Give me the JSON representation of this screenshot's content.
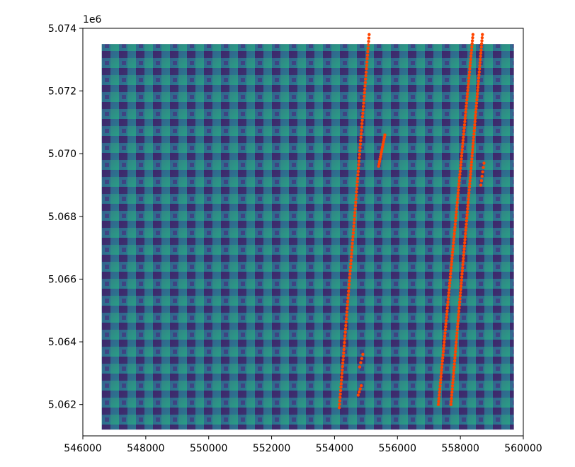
{
  "chart_data": {
    "type": "scatter",
    "title": "",
    "xlabel": "",
    "ylabel": "",
    "xlim": [
      546000,
      560000
    ],
    "ylim": [
      5061000,
      5074000
    ],
    "y_offset_label": "1e6",
    "x_ticks": [
      546000,
      548000,
      550000,
      552000,
      554000,
      556000,
      558000,
      560000
    ],
    "x_tick_labels": [
      "546000",
      "548000",
      "550000",
      "552000",
      "554000",
      "556000",
      "558000",
      "560000"
    ],
    "y_ticks": [
      5062000,
      5064000,
      5066000,
      5068000,
      5070000,
      5072000,
      5074000
    ],
    "y_tick_labels": [
      "5.062",
      "5.064",
      "5.066",
      "5.068",
      "5.070",
      "5.072",
      "5.074"
    ],
    "background_raster": {
      "colormap": "viridis",
      "extent": {
        "xmin": 546600,
        "xmax": 559700,
        "ymin": 5061200,
        "ymax": 5073500
      }
    },
    "series": [
      {
        "color": "#ff4500",
        "tracks": [
          {
            "start": [
              554150,
              5061900
            ],
            "end": [
              555100,
              5073800
            ],
            "count": 110
          },
          {
            "start": [
              555400,
              5069600
            ],
            "end": [
              555600,
              5070600
            ],
            "count": 14
          },
          {
            "start": [
              554750,
              5062300
            ],
            "end": [
              554850,
              5062600
            ],
            "count": 4
          },
          {
            "start": [
              554800,
              5063200
            ],
            "end": [
              554900,
              5063600
            ],
            "count": 4
          },
          {
            "start": [
              557300,
              5062000
            ],
            "end": [
              558400,
              5073800
            ],
            "count": 120
          },
          {
            "start": [
              557700,
              5062000
            ],
            "end": [
              558700,
              5073800
            ],
            "count": 120
          },
          {
            "start": [
              558650,
              5069000
            ],
            "end": [
              558750,
              5069700
            ],
            "count": 6
          }
        ]
      }
    ]
  }
}
